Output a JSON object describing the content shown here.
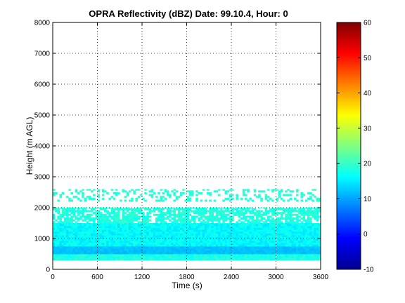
{
  "chart_data": {
    "type": "heatmap",
    "title": "OPRA Reflectivity (dBZ)  Date: 99.10.4, Hour: 0",
    "xlabel": "Time (s)",
    "ylabel": "Height (m AGL)",
    "xlim": [
      0,
      3600
    ],
    "ylim": [
      0,
      8000
    ],
    "xticks": [
      0,
      600,
      1200,
      1800,
      2400,
      3000,
      3600
    ],
    "yticks": [
      0,
      1000,
      2000,
      3000,
      4000,
      5000,
      6000,
      7000,
      8000
    ],
    "grid": true,
    "colorscale": "jet",
    "colorbar": {
      "min": -10,
      "max": 60,
      "ticks": [
        -10,
        0,
        10,
        20,
        30,
        40,
        50,
        60
      ]
    },
    "layers": [
      {
        "height_range": [
          300,
          500
        ],
        "value_range": [
          16,
          20
        ]
      },
      {
        "height_range": [
          500,
          750
        ],
        "value_range": [
          11,
          13
        ]
      },
      {
        "height_range": [
          750,
          1500
        ],
        "value_range": [
          14,
          18
        ]
      },
      {
        "height_range": [
          1500,
          2000
        ],
        "value_range": [
          17,
          20
        ]
      },
      {
        "height_range": [
          2200,
          2600
        ],
        "value_range": [
          18,
          20
        ],
        "sparse": true
      }
    ]
  }
}
